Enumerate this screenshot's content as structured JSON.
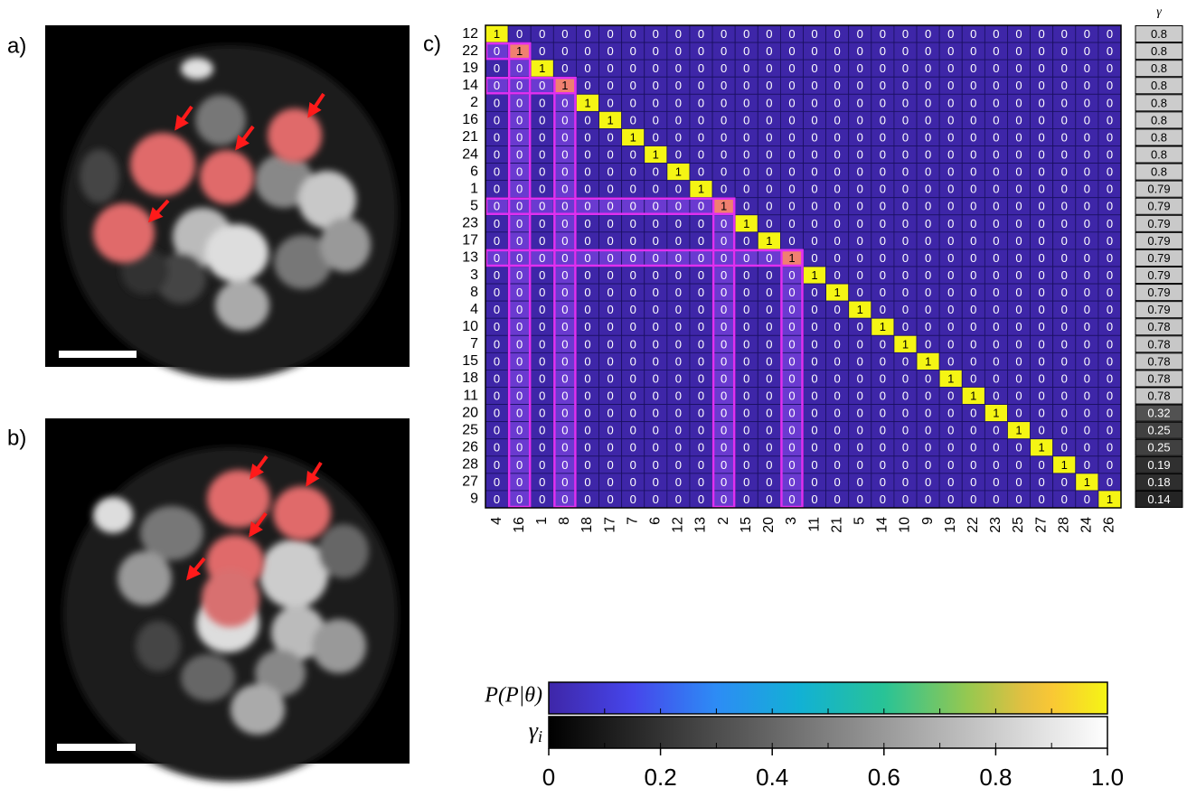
{
  "panels": {
    "a": "a)",
    "b": "b)",
    "c": "c)"
  },
  "chart_data": {
    "type": "heatmap",
    "row_labels": [
      "12",
      "22",
      "19",
      "14",
      "2",
      "16",
      "21",
      "24",
      "6",
      "1",
      "5",
      "23",
      "17",
      "13",
      "3",
      "8",
      "4",
      "10",
      "7",
      "15",
      "18",
      "11",
      "20",
      "25",
      "26",
      "28",
      "27",
      "9"
    ],
    "col_labels": [
      "4",
      "16",
      "1",
      "8",
      "18",
      "17",
      "7",
      "6",
      "12",
      "13",
      "2",
      "15",
      "20",
      "3",
      "11",
      "21",
      "5",
      "14",
      "10",
      "9",
      "19",
      "22",
      "23",
      "25",
      "27",
      "28",
      "24",
      "26"
    ],
    "values": [
      [
        1,
        0,
        0,
        0,
        0,
        0,
        0,
        0,
        0,
        0,
        0,
        0,
        0,
        0,
        0,
        0,
        0,
        0,
        0,
        0,
        0,
        0,
        0,
        0,
        0,
        0,
        0,
        0
      ],
      [
        0,
        1,
        0,
        0,
        0,
        0,
        0,
        0,
        0,
        0,
        0,
        0,
        0,
        0,
        0,
        0,
        0,
        0,
        0,
        0,
        0,
        0,
        0,
        0,
        0,
        0,
        0,
        0
      ],
      [
        0,
        0,
        1,
        0,
        0,
        0,
        0,
        0,
        0,
        0,
        0,
        0,
        0,
        0,
        0,
        0,
        0,
        0,
        0,
        0,
        0,
        0,
        0,
        0,
        0,
        0,
        0,
        0
      ],
      [
        0,
        0,
        0,
        1,
        0,
        0,
        0,
        0,
        0,
        0,
        0,
        0,
        0,
        0,
        0,
        0,
        0,
        0,
        0,
        0,
        0,
        0,
        0,
        0,
        0,
        0,
        0,
        0
      ],
      [
        0,
        0,
        0,
        0,
        1,
        0,
        0,
        0,
        0,
        0,
        0,
        0,
        0,
        0,
        0,
        0,
        0,
        0,
        0,
        0,
        0,
        0,
        0,
        0,
        0,
        0,
        0,
        0
      ],
      [
        0,
        0,
        0,
        0,
        0,
        1,
        0,
        0,
        0,
        0,
        0,
        0,
        0,
        0,
        0,
        0,
        0,
        0,
        0,
        0,
        0,
        0,
        0,
        0,
        0,
        0,
        0,
        0
      ],
      [
        0,
        0,
        0,
        0,
        0,
        0,
        1,
        0,
        0,
        0,
        0,
        0,
        0,
        0,
        0,
        0,
        0,
        0,
        0,
        0,
        0,
        0,
        0,
        0,
        0,
        0,
        0,
        0
      ],
      [
        0,
        0,
        0,
        0,
        0,
        0,
        0,
        1,
        0,
        0,
        0,
        0,
        0,
        0,
        0,
        0,
        0,
        0,
        0,
        0,
        0,
        0,
        0,
        0,
        0,
        0,
        0,
        0
      ],
      [
        0,
        0,
        0,
        0,
        0,
        0,
        0,
        0,
        1,
        0,
        0,
        0,
        0,
        0,
        0,
        0,
        0,
        0,
        0,
        0,
        0,
        0,
        0,
        0,
        0,
        0,
        0,
        0
      ],
      [
        0,
        0,
        0,
        0,
        0,
        0,
        0,
        0,
        0,
        1,
        0,
        0,
        0,
        0,
        0,
        0,
        0,
        0,
        0,
        0,
        0,
        0,
        0,
        0,
        0,
        0,
        0,
        0
      ],
      [
        0,
        0,
        0,
        0,
        0,
        0,
        0,
        0,
        0,
        0,
        1,
        0,
        0,
        0,
        0,
        0,
        0,
        0,
        0,
        0,
        0,
        0,
        0,
        0,
        0,
        0,
        0,
        0
      ],
      [
        0,
        0,
        0,
        0,
        0,
        0,
        0,
        0,
        0,
        0,
        0,
        1,
        0,
        0,
        0,
        0,
        0,
        0,
        0,
        0,
        0,
        0,
        0,
        0,
        0,
        0,
        0,
        0
      ],
      [
        0,
        0,
        0,
        0,
        0,
        0,
        0,
        0,
        0,
        0,
        0,
        0,
        1,
        0,
        0,
        0,
        0,
        0,
        0,
        0,
        0,
        0,
        0,
        0,
        0,
        0,
        0,
        0
      ],
      [
        0,
        0,
        0,
        0,
        0,
        0,
        0,
        0,
        0,
        0,
        0,
        0,
        0,
        1,
        0,
        0,
        0,
        0,
        0,
        0,
        0,
        0,
        0,
        0,
        0,
        0,
        0,
        0
      ],
      [
        0,
        0,
        0,
        0,
        0,
        0,
        0,
        0,
        0,
        0,
        0,
        0,
        0,
        0,
        1,
        0,
        0,
        0,
        0,
        0,
        0,
        0,
        0,
        0,
        0,
        0,
        0,
        0
      ],
      [
        0,
        0,
        0,
        0,
        0,
        0,
        0,
        0,
        0,
        0,
        0,
        0,
        0,
        0,
        0,
        1,
        0,
        0,
        0,
        0,
        0,
        0,
        0,
        0,
        0,
        0,
        0,
        0
      ],
      [
        0,
        0,
        0,
        0,
        0,
        0,
        0,
        0,
        0,
        0,
        0,
        0,
        0,
        0,
        0,
        0,
        1,
        0,
        0,
        0,
        0,
        0,
        0,
        0,
        0,
        0,
        0,
        0
      ],
      [
        0,
        0,
        0,
        0,
        0,
        0,
        0,
        0,
        0,
        0,
        0,
        0,
        0,
        0,
        0,
        0,
        0,
        1,
        0,
        0,
        0,
        0,
        0,
        0,
        0,
        0,
        0,
        0
      ],
      [
        0,
        0,
        0,
        0,
        0,
        0,
        0,
        0,
        0,
        0,
        0,
        0,
        0,
        0,
        0,
        0,
        0,
        0,
        1,
        0,
        0,
        0,
        0,
        0,
        0,
        0,
        0,
        0
      ],
      [
        0,
        0,
        0,
        0,
        0,
        0,
        0,
        0,
        0,
        0,
        0,
        0,
        0,
        0,
        0,
        0,
        0,
        0,
        0,
        1,
        0,
        0,
        0,
        0,
        0,
        0,
        0,
        0
      ],
      [
        0,
        0,
        0,
        0,
        0,
        0,
        0,
        0,
        0,
        0,
        0,
        0,
        0,
        0,
        0,
        0,
        0,
        0,
        0,
        0,
        1,
        0,
        0,
        0,
        0,
        0,
        0,
        0
      ],
      [
        0,
        0,
        0,
        0,
        0,
        0,
        0,
        0,
        0,
        0,
        0,
        0,
        0,
        0,
        0,
        0,
        0,
        0,
        0,
        0,
        0,
        1,
        0,
        0,
        0,
        0,
        0,
        0
      ],
      [
        0,
        0,
        0,
        0,
        0,
        0,
        0,
        0,
        0,
        0,
        0,
        0,
        0,
        0,
        0,
        0,
        0,
        0,
        0,
        0,
        0,
        0,
        1,
        0,
        0,
        0,
        0,
        0
      ],
      [
        0,
        0,
        0,
        0,
        0,
        0,
        0,
        0,
        0,
        0,
        0,
        0,
        0,
        0,
        0,
        0,
        0,
        0,
        0,
        0,
        0,
        0,
        0,
        1,
        0,
        0,
        0,
        0
      ],
      [
        0,
        0,
        0,
        0,
        0,
        0,
        0,
        0,
        0,
        0,
        0,
        0,
        0,
        0,
        0,
        0,
        0,
        0,
        0,
        0,
        0,
        0,
        0,
        0,
        1,
        0,
        0,
        0
      ],
      [
        0,
        0,
        0,
        0,
        0,
        0,
        0,
        0,
        0,
        0,
        0,
        0,
        0,
        0,
        0,
        0,
        0,
        0,
        0,
        0,
        0,
        0,
        0,
        0,
        0,
        1,
        0,
        0
      ],
      [
        0,
        0,
        0,
        0,
        0,
        0,
        0,
        0,
        0,
        0,
        0,
        0,
        0,
        0,
        0,
        0,
        0,
        0,
        0,
        0,
        0,
        0,
        0,
        0,
        0,
        0,
        1,
        0
      ],
      [
        0,
        0,
        0,
        0,
        0,
        0,
        0,
        0,
        0,
        0,
        0,
        0,
        0,
        0,
        0,
        0,
        0,
        0,
        0,
        0,
        0,
        0,
        0,
        0,
        0,
        0,
        0,
        1
      ]
    ],
    "gamma_title": "γ",
    "gamma": [
      0.8,
      0.8,
      0.8,
      0.8,
      0.8,
      0.8,
      0.8,
      0.8,
      0.8,
      0.79,
      0.79,
      0.79,
      0.79,
      0.79,
      0.79,
      0.79,
      0.79,
      0.78,
      0.78,
      0.78,
      0.78,
      0.78,
      0.32,
      0.25,
      0.25,
      0.19,
      0.18,
      0.14
    ],
    "colorbar_labels": [
      "P(P|θ)",
      "γ"
    ],
    "colorbar_subscript": "i",
    "colorbar_lim": [
      0,
      1
    ],
    "colorbar_ticks": [
      0,
      0.2,
      0.4,
      0.6,
      0.8,
      {
        "value": 1,
        "label": "1.0"
      }
    ]
  }
}
